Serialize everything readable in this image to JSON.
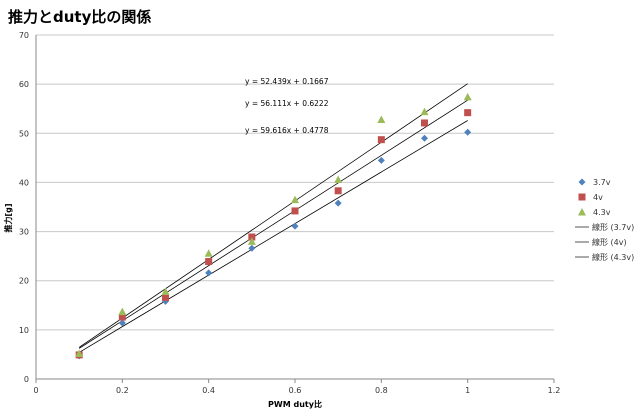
{
  "chart_data": {
    "type": "scatter",
    "title": "推力とduty比の関係",
    "xlabel": "PWM duty比",
    "ylabel": "推力[g]",
    "xlim": [
      0,
      1.2
    ],
    "ylim": [
      0,
      70
    ],
    "xticks": [
      "0",
      "0.2",
      "0.4",
      "0.6",
      "0.8",
      "1",
      "1.2"
    ],
    "yticks": [
      "0",
      "10",
      "20",
      "30",
      "40",
      "50",
      "60",
      "70"
    ],
    "grid": "horizontal",
    "legend": "right",
    "x": [
      0.1,
      0.2,
      0.3,
      0.4,
      0.5,
      0.6,
      0.7,
      0.8,
      0.9,
      1.0
    ],
    "series": [
      {
        "name": "3.7v",
        "marker": "diamond",
        "color": "#4f81bd",
        "values": [
          4.7,
          11.4,
          15.8,
          21.6,
          26.6,
          31.1,
          35.8,
          44.5,
          49.0,
          50.2
        ]
      },
      {
        "name": "4v",
        "marker": "square",
        "color": "#c0504d",
        "values": [
          4.9,
          12.6,
          16.6,
          23.9,
          28.9,
          34.2,
          38.3,
          48.7,
          52.1,
          54.2
        ]
      },
      {
        "name": "4.3v",
        "marker": "triangle",
        "color": "#9bbb59",
        "values": [
          5.2,
          13.7,
          17.8,
          25.6,
          28.0,
          36.5,
          40.6,
          52.8,
          54.4,
          57.4
        ]
      }
    ],
    "trendlines": [
      {
        "name": "線形 (3.7v)",
        "slope": 52.439,
        "intercept": 0.1667,
        "color": "#000000"
      },
      {
        "name": "線形 (4v)",
        "slope": 56.111,
        "intercept": 0.6222,
        "color": "#000000"
      },
      {
        "name": "線形 (4.3v)",
        "slope": 59.616,
        "intercept": 0.4778,
        "color": "#000000"
      }
    ],
    "annotations": [
      "y = 52.439x + 0.1667",
      "y = 56.111x + 0.6222",
      "y = 59.616x + 0.4778"
    ]
  }
}
